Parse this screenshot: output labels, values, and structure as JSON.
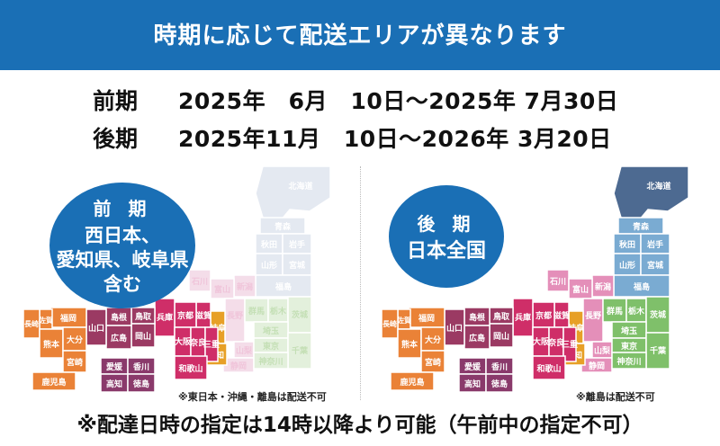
{
  "banner": {
    "title": "時期に応じて配送エリアが異なります"
  },
  "periods": [
    {
      "label": "前期",
      "range": "2025年　6月　10日～2025年 7月30日"
    },
    {
      "label": "後期",
      "range": "2025年11月　10日～2026年 3月20日"
    }
  ],
  "early": {
    "bubble_title": "前 期",
    "bubble_lines": [
      "西日本、",
      "愛知県、岐阜県",
      "含む"
    ],
    "note": "※東日本・沖縄・離島は配送不可"
  },
  "late": {
    "bubble_title": "後 期",
    "bubble_lines": [
      "日本全国"
    ],
    "note": "※離島は配送不可"
  },
  "prefectures": {
    "hokkaido": "北海道",
    "aomori": "青森",
    "akita": "秋田",
    "iwate": "岩手",
    "yamagata": "山形",
    "miyagi": "宮城",
    "fukushima": "福島",
    "niigata": "新潟",
    "ishikawa": "石川",
    "toyama": "富山",
    "fukui": "福井",
    "nagano": "長野",
    "gunma": "群馬",
    "tochigi": "栃木",
    "ibaraki": "茨城",
    "saitama": "埼玉",
    "yamanashi": "山梨",
    "tokyo": "東京",
    "chiba": "千葉",
    "kanagawa": "神奈川",
    "gifu": "岐阜",
    "shizuoka": "静岡",
    "aichi": "愛知",
    "shiga": "滋賀",
    "kyoto": "京都",
    "hyogo": "兵庫",
    "osaka": "大阪",
    "nara": "奈良",
    "mie": "三重",
    "wakayama": "和歌山",
    "tottori": "鳥取",
    "okayama": "岡山",
    "shimane": "島根",
    "hiroshima": "広島",
    "yamaguchi": "山口",
    "kagawa": "香川",
    "tokushima": "徳島",
    "ehime": "愛媛",
    "kochi": "高知",
    "fukuoka": "福岡",
    "saga": "佐賀",
    "nagasaki": "長崎",
    "oita": "大分",
    "kumamoto": "熊本",
    "miyazaki": "宮崎",
    "kagoshima": "鹿児島"
  },
  "footer": {
    "text": "※配達日時の指定は14時以降より可能（午前中の指定不可）"
  },
  "colors": {
    "banner": "#1a6fb5",
    "hokkaido_off": "#e4e9f1",
    "hokkaido_on": "#4d6a91",
    "tohoku": "#7aabd2",
    "kanto": "#7fc06a",
    "chubu": "#e48fb9",
    "kinki": "#cf2e68",
    "chugoku": "#9b3a63",
    "shikoku": "#8a3a6b",
    "kyushu": "#ea8237",
    "gifu_aichi": "#e7a027"
  }
}
